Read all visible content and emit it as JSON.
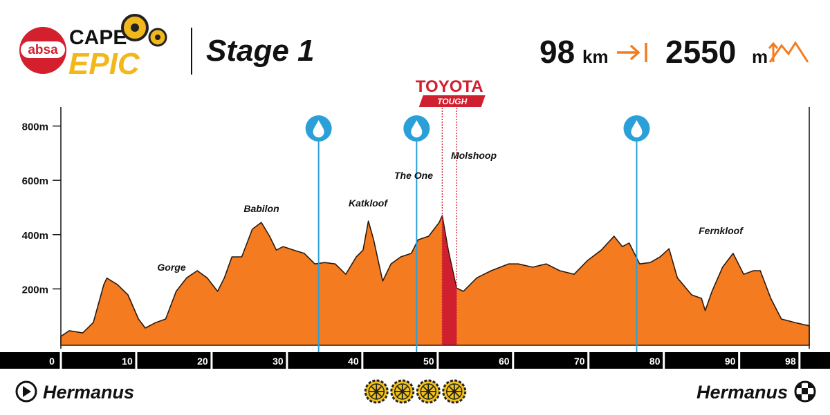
{
  "logo": {
    "sponsor": "absa",
    "line1": "CAPE",
    "line2": "EPIC"
  },
  "header": {
    "title": "Stage 1",
    "distance": 98,
    "distance_unit": "km",
    "elevation_gain": 2550,
    "elevation_unit": "m"
  },
  "chart_data": {
    "type": "area",
    "color": "#f47b20",
    "x": [
      0,
      1.1,
      2.9,
      4.3,
      5.7,
      6.1,
      7.5,
      8.9,
      10.3,
      11.2,
      12.6,
      13.9,
      15.3,
      16.7,
      18.1,
      19.4,
      20.8,
      21.7,
      22.7,
      24.0,
      25.4,
      26.6,
      27.7,
      28.6,
      29.5,
      30.9,
      32.3,
      33.7,
      35.0,
      36.4,
      37.8,
      39.2,
      40.1,
      40.8,
      41.5,
      42.2,
      42.7,
      43.8,
      45.1,
      46.5,
      47.4,
      48.8,
      50.2,
      50.6,
      51.4,
      52.0,
      52.5,
      53.4,
      55.2,
      57.1,
      59.4,
      60.7,
      62.6,
      64.4,
      66.2,
      68.1,
      69.9,
      71.7,
      73.4,
      74.5,
      75.4,
      76.8,
      78.2,
      79.5,
      80.7,
      81.8,
      83.7,
      85.0,
      85.5,
      86.4,
      87.8,
      89.2,
      90.6,
      91.9,
      92.8,
      94.2,
      95.6,
      97.4,
      99.3
    ],
    "values": [
      25,
      46,
      38,
      76,
      216,
      240,
      216,
      178,
      89,
      56,
      76,
      89,
      191,
      241,
      267,
      241,
      191,
      241,
      318,
      318,
      420,
      445,
      394,
      343,
      356,
      343,
      331,
      292,
      297,
      292,
      254,
      318,
      343,
      450,
      381,
      292,
      229,
      292,
      318,
      331,
      381,
      394,
      445,
      470,
      343,
      267,
      203,
      191,
      241,
      267,
      292,
      292,
      280,
      292,
      267,
      254,
      305,
      343,
      394,
      356,
      369,
      292,
      297,
      318,
      348,
      241,
      178,
      165,
      120,
      191,
      280,
      331,
      254,
      267,
      267,
      165,
      89,
      76,
      64
    ],
    "xlim": [
      0,
      99.3
    ],
    "ylim": [
      0,
      870
    ],
    "xticks": [
      0,
      10,
      20,
      30,
      40,
      50,
      60,
      70,
      80,
      90,
      98
    ],
    "yticks": [
      {
        "value": 200,
        "label": "200m"
      },
      {
        "value": 400,
        "label": "400m"
      },
      {
        "value": 600,
        "label": "600m"
      },
      {
        "value": 800,
        "label": "800m"
      }
    ],
    "annotations": [
      "Gorge",
      "Babilon",
      "Katkloof",
      "The One",
      "Molshoop",
      "Fernkloof"
    ],
    "water_points": [
      34.2,
      47.2,
      76.4
    ],
    "water_color": "#2a9fd8",
    "tough_segment": {
      "name": "TOYOTA",
      "label": "TOUGH",
      "range": [
        50.6,
        52.5
      ],
      "color": "#d0202f"
    }
  },
  "footer": {
    "start": "Hermanus",
    "finish": "Hermanus",
    "difficulty": 4
  }
}
